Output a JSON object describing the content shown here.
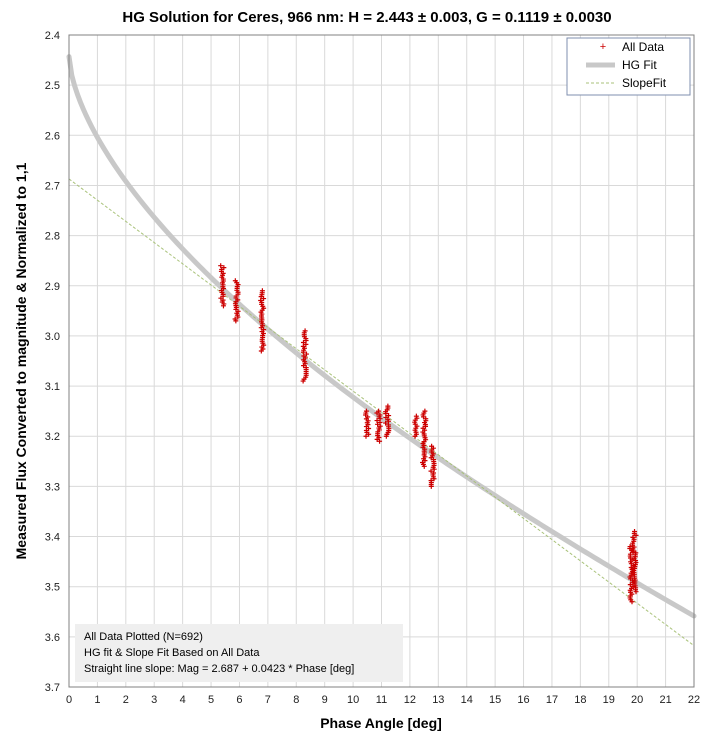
{
  "chart_data": {
    "type": "scatter",
    "title": "HG Solution for Ceres, 966 nm:  H = 2.443 ± 0.003, G = 0.1119 ± 0.0030",
    "xlabel": "Phase Angle [deg]",
    "ylabel": "Measured Flux Converted to magnitude & Normalized to 1,1",
    "xlim": [
      0,
      22
    ],
    "ylim": [
      2.4,
      3.7
    ],
    "y_inverted": true,
    "grid": true,
    "legend_position": "top-right",
    "x_ticks": [
      "0",
      "1",
      "2",
      "3",
      "4",
      "5",
      "6",
      "7",
      "8",
      "9",
      "10",
      "11",
      "12",
      "13",
      "14",
      "15",
      "16",
      "17",
      "18",
      "19",
      "20",
      "21",
      "22"
    ],
    "y_ticks": [
      "2.4",
      "2.5",
      "2.6",
      "2.7",
      "2.8",
      "2.9",
      "3.0",
      "3.1",
      "3.2",
      "3.3",
      "3.4",
      "3.5",
      "3.6",
      "3.7"
    ],
    "legend": [
      "All Data",
      "HG Fit",
      "SlopeFit"
    ],
    "series": [
      {
        "name": "All Data",
        "kind": "scatter",
        "color": "#cc0000",
        "clusters": [
          {
            "x": 5.4,
            "y_min": 2.86,
            "y_max": 2.94
          },
          {
            "x": 5.9,
            "y_min": 2.89,
            "y_max": 2.97
          },
          {
            "x": 6.8,
            "y_min": 2.91,
            "y_max": 3.03
          },
          {
            "x": 8.3,
            "y_min": 2.99,
            "y_max": 3.09
          },
          {
            "x": 10.5,
            "y_min": 3.15,
            "y_max": 3.2
          },
          {
            "x": 10.9,
            "y_min": 3.15,
            "y_max": 3.21
          },
          {
            "x": 11.2,
            "y_min": 3.14,
            "y_max": 3.2
          },
          {
            "x": 12.2,
            "y_min": 3.16,
            "y_max": 3.2
          },
          {
            "x": 12.5,
            "y_min": 3.15,
            "y_max": 3.26
          },
          {
            "x": 12.8,
            "y_min": 3.22,
            "y_max": 3.3
          },
          {
            "x": 19.8,
            "y_min": 3.42,
            "y_max": 3.53
          },
          {
            "x": 19.9,
            "y_min": 3.39,
            "y_max": 3.51
          }
        ]
      },
      {
        "name": "HG Fit",
        "kind": "line",
        "color": "#c8c8c8",
        "H": 2.443,
        "G": 0.1119
      },
      {
        "name": "SlopeFit",
        "kind": "line",
        "color": "#a9c27a",
        "intercept": 2.687,
        "slope": 0.0423
      }
    ],
    "annotation": {
      "lines": [
        "All Data Plotted (N=692)",
        "HG fit & Slope Fit Based on All Data",
        "Straight line slope:  Mag = 2.687 + 0.0423 * Phase [deg]"
      ]
    }
  }
}
